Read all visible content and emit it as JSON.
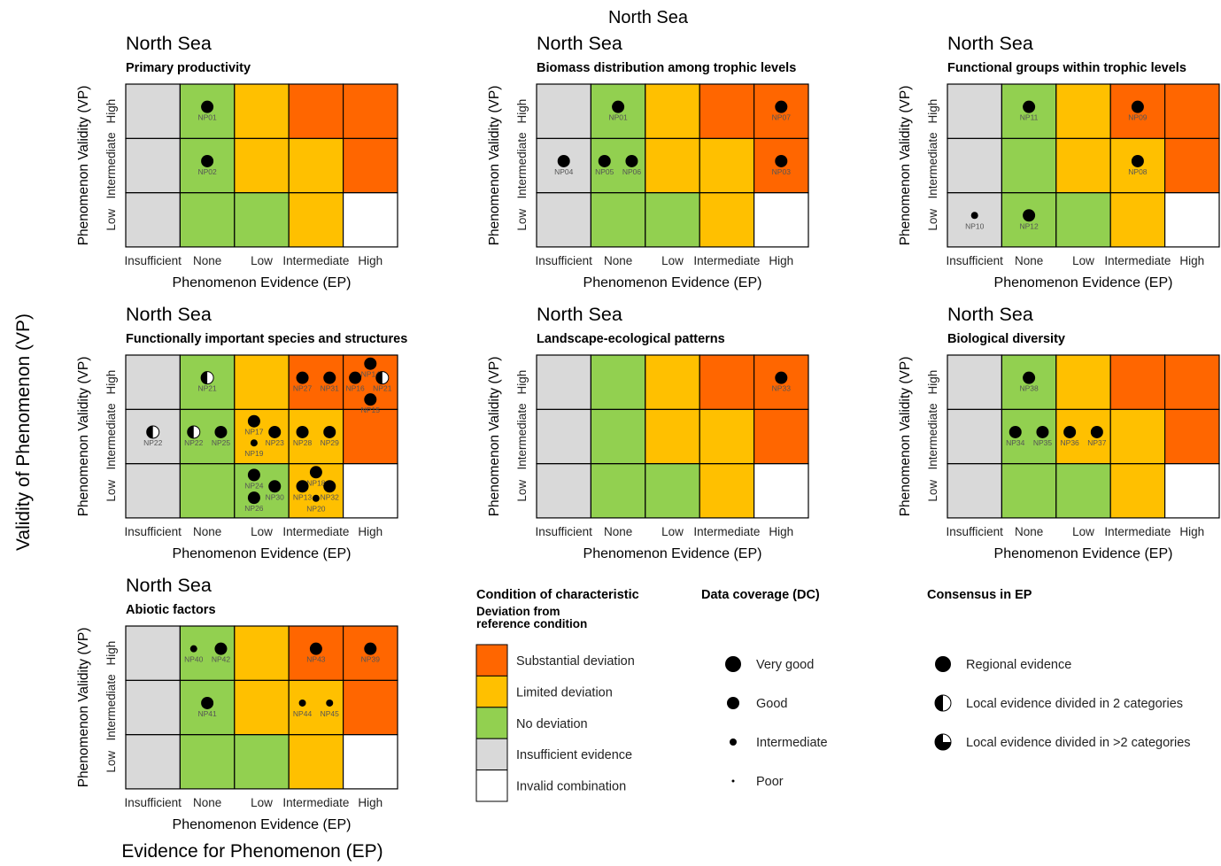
{
  "figure": {
    "title": "North Sea",
    "ylabel": "Validity of Phenomenon (VP)",
    "xlabel": "Evidence for Phenomenon (EP)"
  },
  "colors": {
    "substantial": "#ff6600",
    "limited": "#ffc000",
    "none": "#92d050",
    "insufficient": "#d9d9d9",
    "invalid": "#ffffff"
  },
  "axis": {
    "x_ticks": [
      "Insufficient",
      "None",
      "Low",
      "Intermediate",
      "High"
    ],
    "y_ticks": [
      "Low",
      "Intermediate",
      "High"
    ],
    "xlabel": "Phenomenon Evidence (EP)",
    "ylabel": "Phenomenon Validity (VP)"
  },
  "grid": [
    [
      "insufficient",
      "none",
      "none",
      "limited",
      "invalid"
    ],
    [
      "insufficient",
      "none",
      "limited",
      "limited",
      "substantial"
    ],
    [
      "insufficient",
      "none",
      "limited",
      "substantial",
      "substantial"
    ]
  ],
  "chart_data": [
    {
      "type": "scatter",
      "region": "North Sea",
      "title": "Primary productivity",
      "points": [
        {
          "label": "NP01",
          "ep": "None",
          "vp": "High",
          "dc": "good",
          "consensus": "regional"
        },
        {
          "label": "NP02",
          "ep": "None",
          "vp": "Intermediate",
          "dc": "good",
          "consensus": "regional"
        }
      ]
    },
    {
      "type": "scatter",
      "region": "North Sea",
      "title": "Biomass distribution among trophic levels",
      "points": [
        {
          "label": "NP01",
          "ep": "None",
          "vp": "High",
          "dc": "good",
          "consensus": "regional"
        },
        {
          "label": "NP07",
          "ep": "High",
          "vp": "High",
          "dc": "good",
          "consensus": "regional"
        },
        {
          "label": "NP04",
          "ep": "Insufficient",
          "vp": "Intermediate",
          "dc": "good",
          "consensus": "regional"
        },
        {
          "label": "NP05",
          "ep": "None",
          "vp": "Intermediate",
          "dc": "good",
          "consensus": "regional"
        },
        {
          "label": "NP06",
          "ep": "None",
          "vp": "Intermediate",
          "dc": "good",
          "consensus": "regional"
        },
        {
          "label": "NP03",
          "ep": "High",
          "vp": "Intermediate",
          "dc": "good",
          "consensus": "regional"
        }
      ]
    },
    {
      "type": "scatter",
      "region": "North Sea",
      "title": "Functional groups within trophic levels",
      "points": [
        {
          "label": "NP11",
          "ep": "None",
          "vp": "High",
          "dc": "good",
          "consensus": "regional"
        },
        {
          "label": "NP09",
          "ep": "Intermediate",
          "vp": "High",
          "dc": "good",
          "consensus": "regional"
        },
        {
          "label": "NP08",
          "ep": "Intermediate",
          "vp": "Intermediate",
          "dc": "good",
          "consensus": "regional"
        },
        {
          "label": "NP10",
          "ep": "Insufficient",
          "vp": "Low",
          "dc": "intermediate",
          "consensus": "regional"
        },
        {
          "label": "NP12",
          "ep": "None",
          "vp": "Low",
          "dc": "good",
          "consensus": "regional"
        }
      ]
    },
    {
      "type": "scatter",
      "region": "North Sea",
      "title": "Functionally important species and structures",
      "points": [
        {
          "label": "NP21",
          "ep": "None",
          "vp": "High",
          "dc": "good",
          "consensus": "local2"
        },
        {
          "label": "NP27",
          "ep": "Intermediate",
          "vp": "High",
          "dc": "good",
          "consensus": "regional"
        },
        {
          "label": "NP31",
          "ep": "Intermediate",
          "vp": "High",
          "dc": "good",
          "consensus": "regional"
        },
        {
          "label": "NP14",
          "ep": "High",
          "vp": "High",
          "dc": "good",
          "consensus": "regional"
        },
        {
          "label": "NP16",
          "ep": "High",
          "vp": "High",
          "dc": "good",
          "consensus": "regional"
        },
        {
          "label": "NP21",
          "ep": "High",
          "vp": "High",
          "dc": "good",
          "consensus": "local2"
        },
        {
          "label": "NP15",
          "ep": "High",
          "vp": "High",
          "dc": "good",
          "consensus": "regional"
        },
        {
          "label": "NP22",
          "ep": "Insufficient",
          "vp": "Intermediate",
          "dc": "good",
          "consensus": "local2"
        },
        {
          "label": "NP22",
          "ep": "None",
          "vp": "Intermediate",
          "dc": "good",
          "consensus": "local2"
        },
        {
          "label": "NP25",
          "ep": "None",
          "vp": "Intermediate",
          "dc": "good",
          "consensus": "regional"
        },
        {
          "label": "NP17",
          "ep": "Low",
          "vp": "Intermediate",
          "dc": "good",
          "consensus": "regional"
        },
        {
          "label": "NP23",
          "ep": "Low",
          "vp": "Intermediate",
          "dc": "good",
          "consensus": "regional"
        },
        {
          "label": "NP19",
          "ep": "Low",
          "vp": "Intermediate",
          "dc": "intermediate",
          "consensus": "regional"
        },
        {
          "label": "NP28",
          "ep": "Intermediate",
          "vp": "Intermediate",
          "dc": "good",
          "consensus": "regional"
        },
        {
          "label": "NP29",
          "ep": "Intermediate",
          "vp": "Intermediate",
          "dc": "good",
          "consensus": "regional"
        },
        {
          "label": "NP24",
          "ep": "Low",
          "vp": "Low",
          "dc": "good",
          "consensus": "regional"
        },
        {
          "label": "NP30",
          "ep": "Low",
          "vp": "Low",
          "dc": "good",
          "consensus": "regional"
        },
        {
          "label": "NP26",
          "ep": "Low",
          "vp": "Low",
          "dc": "good",
          "consensus": "regional"
        },
        {
          "label": "NP18",
          "ep": "Intermediate",
          "vp": "Low",
          "dc": "good",
          "consensus": "regional"
        },
        {
          "label": "NP13",
          "ep": "Intermediate",
          "vp": "Low",
          "dc": "good",
          "consensus": "regional"
        },
        {
          "label": "NP32",
          "ep": "Intermediate",
          "vp": "Low",
          "dc": "good",
          "consensus": "regional"
        },
        {
          "label": "NP20",
          "ep": "Intermediate",
          "vp": "Low",
          "dc": "intermediate",
          "consensus": "regional"
        }
      ]
    },
    {
      "type": "scatter",
      "region": "North Sea",
      "title": "Landscape-ecological patterns",
      "points": [
        {
          "label": "NP33",
          "ep": "High",
          "vp": "High",
          "dc": "good",
          "consensus": "regional"
        }
      ]
    },
    {
      "type": "scatter",
      "region": "North Sea",
      "title": "Biological diversity",
      "points": [
        {
          "label": "NP38",
          "ep": "None",
          "vp": "High",
          "dc": "good",
          "consensus": "regional"
        },
        {
          "label": "NP34",
          "ep": "None",
          "vp": "Intermediate",
          "dc": "good",
          "consensus": "regional"
        },
        {
          "label": "NP35",
          "ep": "None",
          "vp": "Intermediate",
          "dc": "good",
          "consensus": "regional"
        },
        {
          "label": "NP36",
          "ep": "Low",
          "vp": "Intermediate",
          "dc": "good",
          "consensus": "regional"
        },
        {
          "label": "NP37",
          "ep": "Low",
          "vp": "Intermediate",
          "dc": "good",
          "consensus": "regional"
        }
      ]
    },
    {
      "type": "scatter",
      "region": "North Sea",
      "title": "Abiotic factors",
      "points": [
        {
          "label": "NP40",
          "ep": "None",
          "vp": "High",
          "dc": "intermediate",
          "consensus": "regional"
        },
        {
          "label": "NP42",
          "ep": "None",
          "vp": "High",
          "dc": "good",
          "consensus": "regional"
        },
        {
          "label": "NP43",
          "ep": "Intermediate",
          "vp": "High",
          "dc": "good",
          "consensus": "regional"
        },
        {
          "label": "NP39",
          "ep": "High",
          "vp": "High",
          "dc": "good",
          "consensus": "regional"
        },
        {
          "label": "NP41",
          "ep": "None",
          "vp": "Intermediate",
          "dc": "good",
          "consensus": "regional"
        },
        {
          "label": "NP44",
          "ep": "Intermediate",
          "vp": "Intermediate",
          "dc": "intermediate",
          "consensus": "regional"
        },
        {
          "label": "NP45",
          "ep": "Intermediate",
          "vp": "Intermediate",
          "dc": "intermediate",
          "consensus": "regional"
        }
      ]
    }
  ],
  "legend": {
    "condition": {
      "title": "Condition of characteristic",
      "subtitle_line1": "Deviation from",
      "subtitle_line2": "reference condition",
      "items": [
        {
          "label": "Substantial deviation",
          "color": "#ff6600"
        },
        {
          "label": "Limited deviation",
          "color": "#ffc000"
        },
        {
          "label": "No deviation",
          "color": "#92d050"
        },
        {
          "label": "Insufficient evidence",
          "color": "#d9d9d9"
        },
        {
          "label": "Invalid combination",
          "color": "#ffffff"
        }
      ]
    },
    "coverage": {
      "title": "Data coverage (DC)",
      "items": [
        {
          "label": "Very good",
          "level": "very_good"
        },
        {
          "label": "Good",
          "level": "good"
        },
        {
          "label": "Intermediate",
          "level": "intermediate"
        },
        {
          "label": "Poor",
          "level": "poor"
        }
      ]
    },
    "consensus": {
      "title": "Consensus in EP",
      "items": [
        {
          "label": "Regional evidence",
          "kind": "regional"
        },
        {
          "label": "Local evidence divided in 2 categories",
          "kind": "local2"
        },
        {
          "label": "Local evidence divided in >2 categories",
          "kind": "local3"
        }
      ]
    }
  }
}
